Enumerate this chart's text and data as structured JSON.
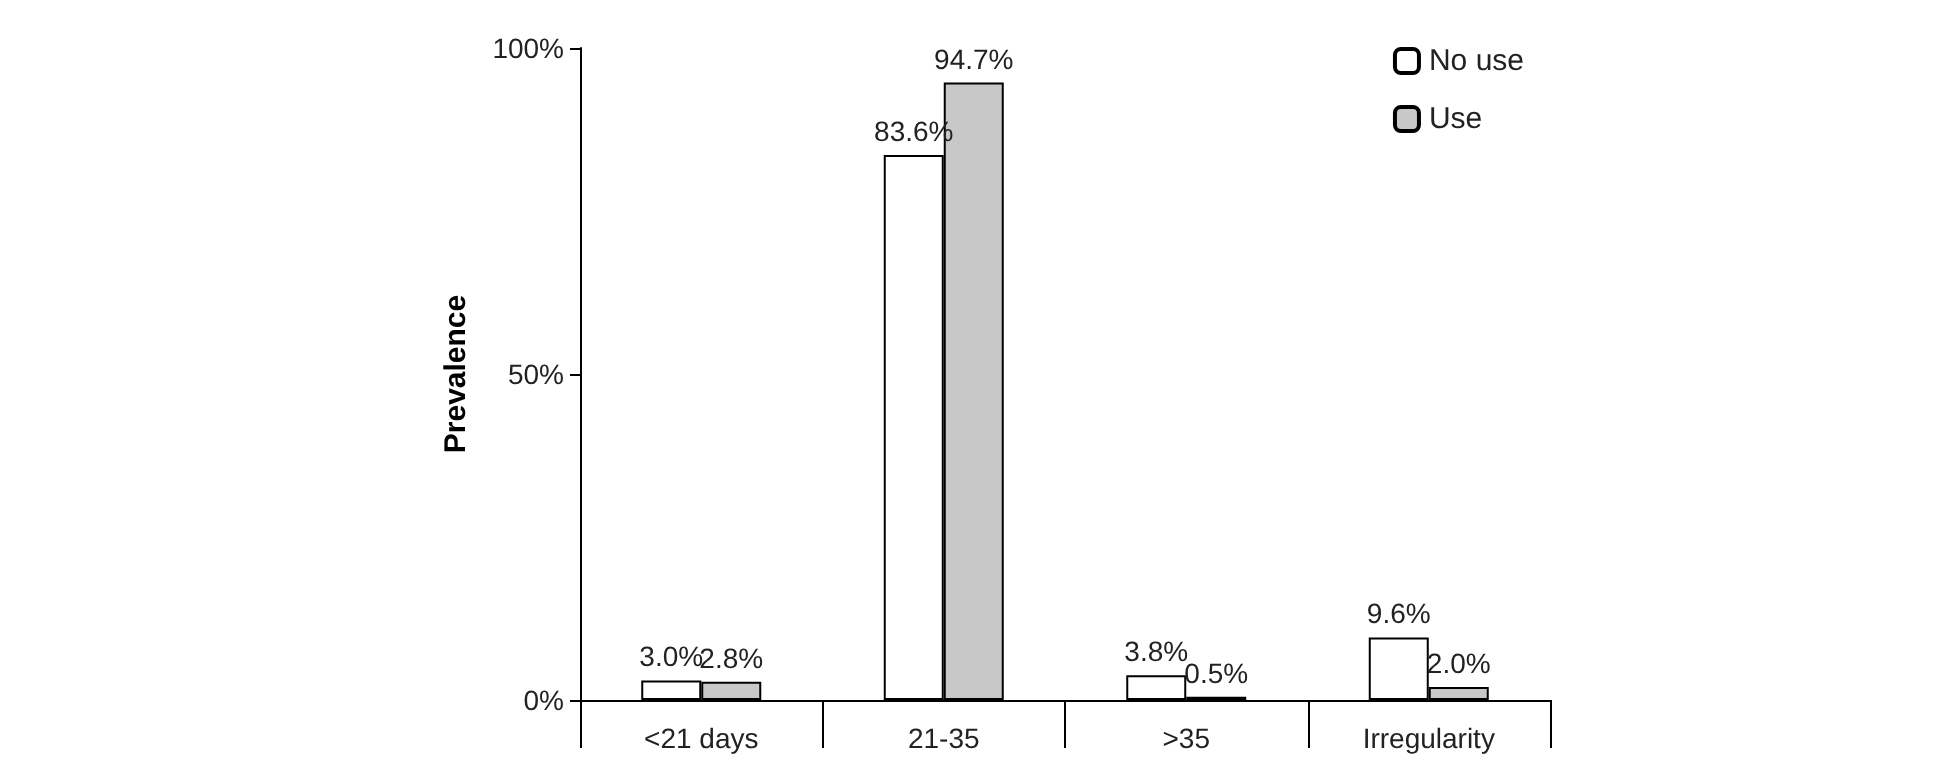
{
  "chart_data": {
    "type": "bar",
    "ylabel": "Prevalence",
    "categories": [
      "<21 days",
      "21-35",
      ">35",
      "Irregularity"
    ],
    "series": [
      {
        "name": "No use",
        "color": "#ffffff",
        "values": [
          3.0,
          83.6,
          3.8,
          9.6
        ],
        "value_labels": [
          "3.0%",
          "83.6%",
          "3.8%",
          "9.6%"
        ]
      },
      {
        "name": "Use",
        "color": "#c8c8c8",
        "values": [
          2.8,
          94.7,
          0.5,
          2.0
        ],
        "value_labels": [
          "2.8%",
          "94.7%",
          "0.5%",
          "2.0%"
        ]
      }
    ],
    "ylim": [
      0,
      100
    ],
    "yticks": [
      {
        "value": 0,
        "label": "0%"
      },
      {
        "value": 50,
        "label": "50%"
      },
      {
        "value": 100,
        "label": "100%"
      }
    ],
    "grid": false,
    "legend": "top right"
  }
}
